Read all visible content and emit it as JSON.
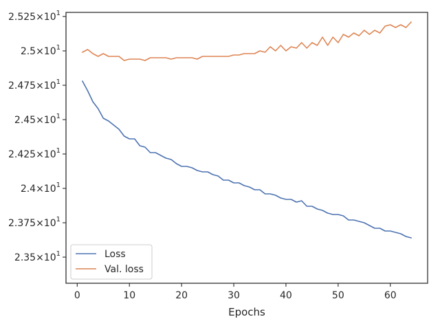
{
  "chart_data": {
    "type": "line",
    "title": "",
    "xlabel": "Epochs",
    "ylabel": "",
    "xlim": [
      -2.15,
      67.15
    ],
    "ylim": [
      23.31,
      25.28
    ],
    "xticks": [
      0,
      10,
      20,
      30,
      40,
      50,
      60
    ],
    "xtick_labels": [
      "0",
      "10",
      "20",
      "30",
      "40",
      "50",
      "60"
    ],
    "yticks": [
      23.5,
      23.75,
      24.0,
      24.25,
      24.5,
      24.75,
      25.0,
      25.25
    ],
    "ytick_labels": [
      {
        "mantissa": "2.35",
        "exponent": "1"
      },
      {
        "mantissa": "2.375",
        "exponent": "1"
      },
      {
        "mantissa": "2.4",
        "exponent": "1"
      },
      {
        "mantissa": "2.425",
        "exponent": "1"
      },
      {
        "mantissa": "2.45",
        "exponent": "1"
      },
      {
        "mantissa": "2.475",
        "exponent": "1"
      },
      {
        "mantissa": "2.5",
        "exponent": "1"
      },
      {
        "mantissa": "2.525",
        "exponent": "1"
      }
    ],
    "grid": false,
    "legend_position": "lower-left",
    "x": [
      1,
      2,
      3,
      4,
      5,
      6,
      7,
      8,
      9,
      10,
      11,
      12,
      13,
      14,
      15,
      16,
      17,
      18,
      19,
      20,
      21,
      22,
      23,
      24,
      25,
      26,
      27,
      28,
      29,
      30,
      31,
      32,
      33,
      34,
      35,
      36,
      37,
      38,
      39,
      40,
      41,
      42,
      43,
      44,
      45,
      46,
      47,
      48,
      49,
      50,
      51,
      52,
      53,
      54,
      55,
      56,
      57,
      58,
      59,
      60,
      61,
      62,
      63,
      64
    ],
    "series": [
      {
        "name": "Loss",
        "color": "#4c72b0",
        "values": [
          24.78,
          24.71,
          24.63,
          24.58,
          24.51,
          24.49,
          24.46,
          24.43,
          24.38,
          24.36,
          24.36,
          24.31,
          24.3,
          24.26,
          24.26,
          24.24,
          24.22,
          24.21,
          24.18,
          24.16,
          24.16,
          24.15,
          24.13,
          24.12,
          24.12,
          24.1,
          24.09,
          24.06,
          24.06,
          24.04,
          24.04,
          24.02,
          24.01,
          23.99,
          23.99,
          23.96,
          23.96,
          23.95,
          23.93,
          23.92,
          23.92,
          23.9,
          23.91,
          23.87,
          23.87,
          23.85,
          23.84,
          23.82,
          23.81,
          23.81,
          23.8,
          23.77,
          23.77,
          23.76,
          23.75,
          23.73,
          23.71,
          23.71,
          23.69,
          23.69,
          23.68,
          23.67,
          23.65,
          23.64
        ]
      },
      {
        "name": "Val. loss",
        "color": "#dd8452",
        "values": [
          24.99,
          25.01,
          24.98,
          24.96,
          24.98,
          24.96,
          24.96,
          24.96,
          24.93,
          24.94,
          24.94,
          24.94,
          24.93,
          24.95,
          24.95,
          24.95,
          24.95,
          24.94,
          24.95,
          24.95,
          24.95,
          24.95,
          24.94,
          24.96,
          24.96,
          24.96,
          24.96,
          24.96,
          24.96,
          24.97,
          24.97,
          24.98,
          24.98,
          24.98,
          25.0,
          24.99,
          25.03,
          25.0,
          25.04,
          25.0,
          25.03,
          25.02,
          25.06,
          25.02,
          25.06,
          25.04,
          25.1,
          25.04,
          25.1,
          25.06,
          25.12,
          25.1,
          25.13,
          25.11,
          25.15,
          25.12,
          25.15,
          25.13,
          25.18,
          25.19,
          25.17,
          25.19,
          25.17,
          25.21
        ]
      }
    ]
  }
}
